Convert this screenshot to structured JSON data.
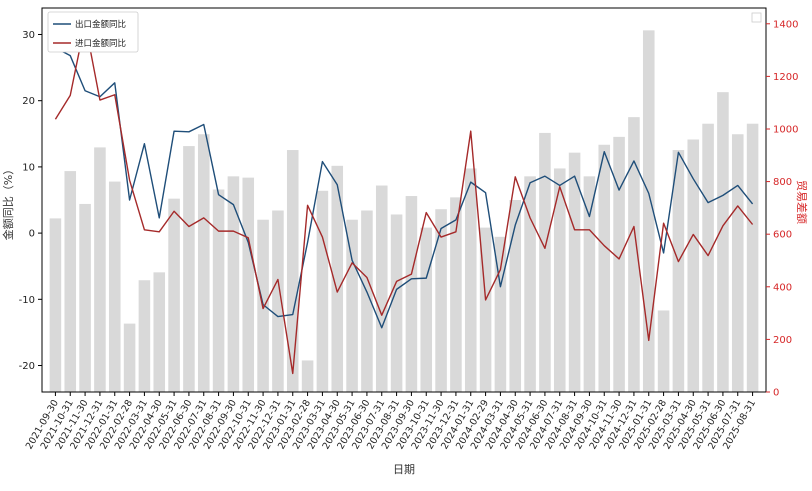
{
  "chart_data": {
    "type": "bar+line",
    "xlabel": "日期",
    "ylabel_left": "金额同比（%）",
    "ylabel_right": "贸易差额",
    "ylim_left": [
      -24,
      34
    ],
    "ylim_right": [
      0,
      1460
    ],
    "yticks_left": [
      -20,
      -10,
      0,
      10,
      20,
      30
    ],
    "yticks_right": [
      0,
      200,
      400,
      600,
      800,
      1000,
      1200,
      1400
    ],
    "legend_position": "top-left",
    "colors": {
      "export": "#1f4e79",
      "import": "#a52a2a",
      "bars": "#d9d9d9",
      "right_axis": "#d62728",
      "frame": "#000000"
    },
    "categories": [
      "2021-09-30",
      "2021-10-31",
      "2021-11-30",
      "2021-12-31",
      "2022-01-31",
      "2022-02-28",
      "2022-03-31",
      "2022-04-30",
      "2022-05-31",
      "2022-06-30",
      "2022-07-31",
      "2022-08-31",
      "2022-09-30",
      "2022-10-31",
      "2022-11-30",
      "2022-12-31",
      "2023-01-31",
      "2023-02-28",
      "2023-03-31",
      "2023-04-30",
      "2023-05-31",
      "2023-06-30",
      "2023-07-31",
      "2023-08-31",
      "2023-09-30",
      "2023-10-31",
      "2023-11-30",
      "2023-12-31",
      "2024-01-31",
      "2024-02-29",
      "2024-03-31",
      "2024-04-30",
      "2024-05-31",
      "2024-06-30",
      "2024-07-31",
      "2024-08-31",
      "2024-09-30",
      "2024-10-31",
      "2024-11-30",
      "2024-12-31",
      "2025-01-31",
      "2025-02-28",
      "2025-03-31",
      "2025-04-30",
      "2025-05-31",
      "2025-06-30",
      "2025-07-31",
      "2025-08-31"
    ],
    "series": [
      {
        "name": "出口金额同比",
        "axis": "left",
        "style": "line",
        "values": [
          28,
          26.8,
          21.5,
          20.6,
          22.7,
          5.0,
          13.5,
          2.3,
          15.4,
          15.3,
          16.4,
          5.8,
          4.3,
          -1.4,
          -10.8,
          -12.6,
          -12.3,
          -1.4,
          10.8,
          7.3,
          -4.1,
          -8.9,
          -14.3,
          -8.5,
          -6.9,
          -6.8,
          0.7,
          2.0,
          7.7,
          6.1,
          -8.1,
          1.2,
          7.6,
          8.6,
          7.2,
          8.6,
          2.5,
          12.3,
          6.5,
          10.9,
          6.0,
          -3.0,
          12.2,
          8.2,
          4.6,
          5.7,
          7.2,
          4.4
        ]
      },
      {
        "name": "进口金额同比",
        "axis": "left",
        "style": "line",
        "values": [
          17.2,
          20.8,
          31.8,
          20.1,
          20.9,
          8.0,
          0.5,
          0.2,
          3.3,
          1.0,
          2.3,
          0.3,
          0.3,
          -0.7,
          -11.4,
          -7.0,
          -21.2,
          4.2,
          -0.6,
          -8.9,
          -4.5,
          -6.7,
          -12.4,
          -7.3,
          -6.2,
          3.1,
          -0.6,
          0.2,
          15.4,
          -10.1,
          -5.5,
          8.5,
          2.3,
          -2.3,
          7.0,
          0.5,
          0.5,
          -1.9,
          -3.9,
          1.0,
          -16.2,
          1.5,
          -4.3,
          -0.2,
          -3.4,
          1.1,
          4.1,
          1.3
        ]
      },
      {
        "name": "贸易差额",
        "axis": "right",
        "style": "bar",
        "values": [
          660,
          840,
          715,
          930,
          800,
          260,
          425,
          455,
          735,
          935,
          980,
          770,
          820,
          815,
          655,
          690,
          920,
          120,
          765,
          860,
          655,
          690,
          785,
          675,
          745,
          625,
          695,
          740,
          850,
          625,
          590,
          730,
          820,
          985,
          850,
          910,
          820,
          940,
          970,
          1045,
          1375,
          310,
          920,
          960,
          1020,
          1140,
          980,
          1020
        ]
      }
    ]
  }
}
